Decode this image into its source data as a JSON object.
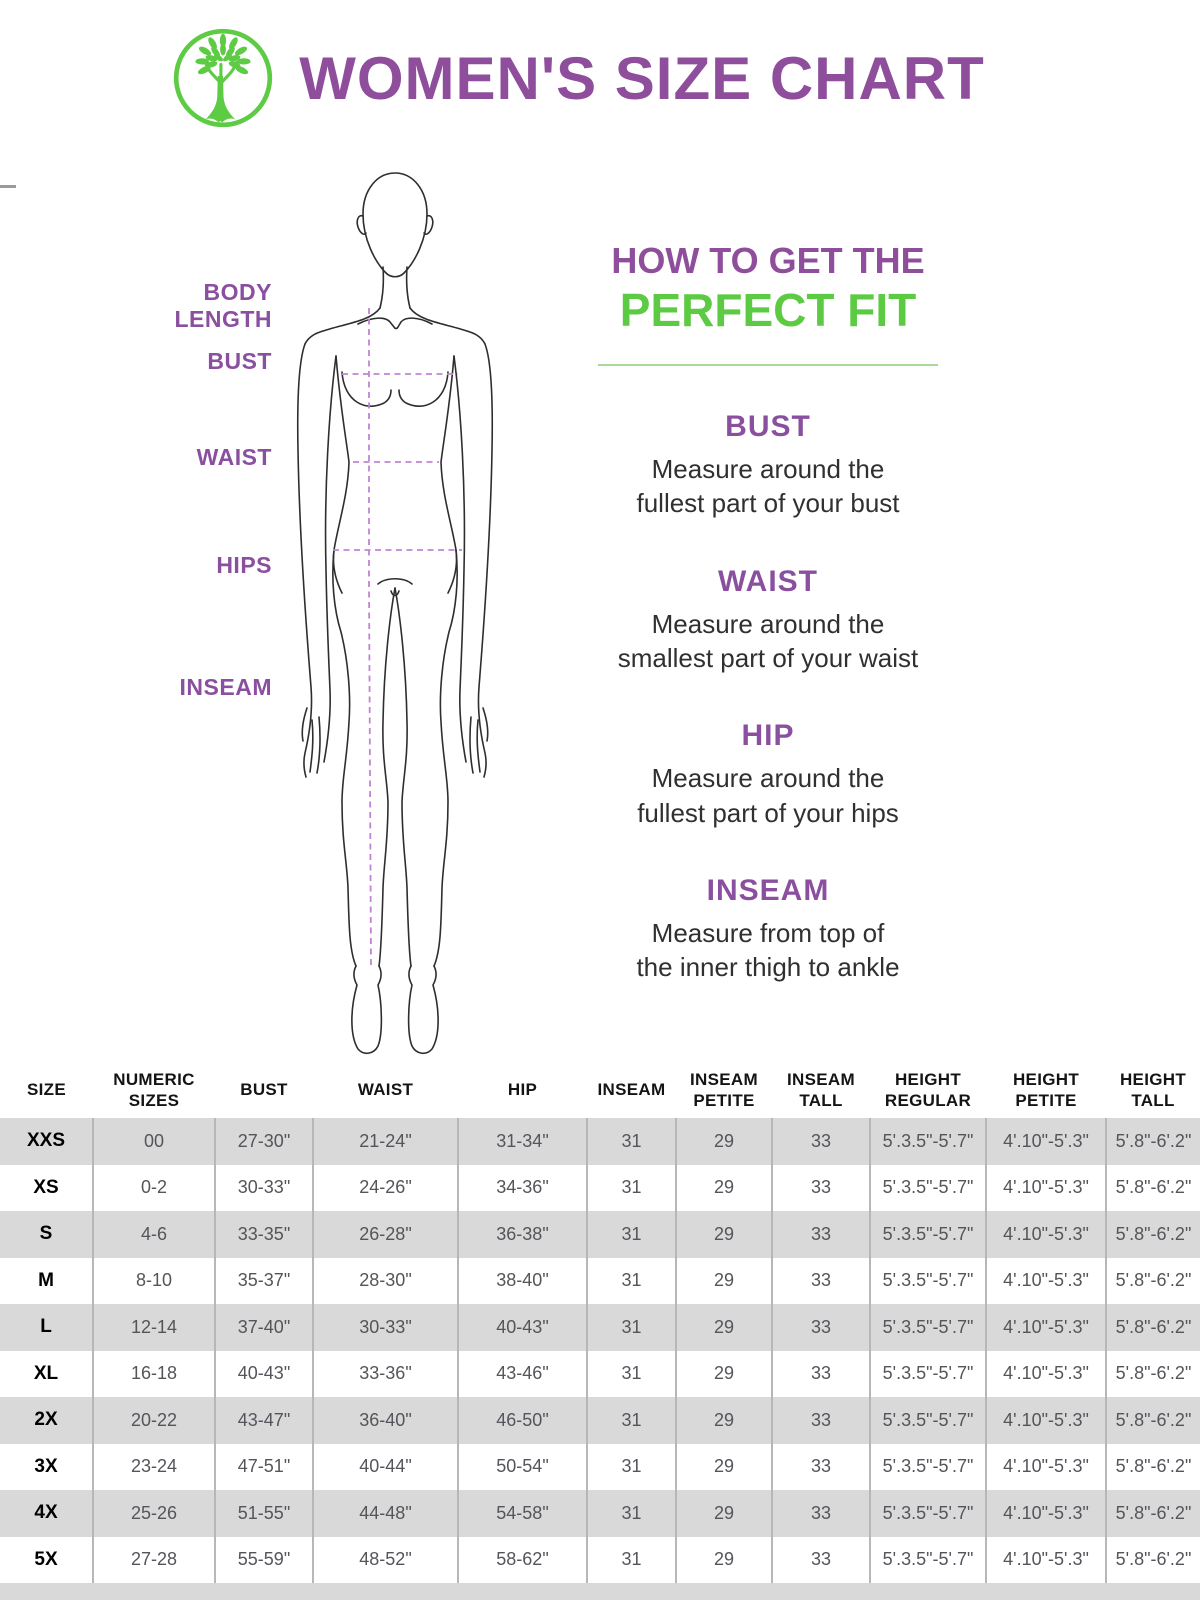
{
  "header": {
    "title": "WOMEN'S SIZE CHART"
  },
  "logo": {
    "label": "tree-logo",
    "color": "#5ecb44"
  },
  "figure": {
    "labels": {
      "body_length": "BODY LENGTH",
      "bust": "BUST",
      "waist": "WAIST",
      "hips": "HIPS",
      "inseam": "INSEAM"
    }
  },
  "guide": {
    "title_line1": "HOW TO GET THE",
    "title_line2": "PERFECT FIT",
    "sections": [
      {
        "heading": "BUST",
        "text": "Measure around the\nfullest part of your bust"
      },
      {
        "heading": "WAIST",
        "text": "Measure around the\nsmallest part of your waist"
      },
      {
        "heading": "HIP",
        "text": "Measure around the\nfullest part of your hips"
      },
      {
        "heading": "INSEAM",
        "text": "Measure from top of\nthe inner thigh to ankle"
      }
    ]
  },
  "colors": {
    "purple": "#8e4e9c",
    "green": "#5ccb43",
    "row_gray": "#d9d9d9"
  },
  "table": {
    "columns": [
      "SIZE",
      "NUMERIC SIZES",
      "BUST",
      "WAIST",
      "HIP",
      "INSEAM",
      "INSEAM PETITE",
      "INSEAM TALL",
      "HEIGHT REGULAR",
      "HEIGHT PETITE",
      "HEIGHT TALL"
    ],
    "rows": [
      [
        "XXS",
        "00",
        "27-30\"",
        "21-24\"",
        "31-34\"",
        "31",
        "29",
        "33",
        "5'.3.5\"-5'.7\"",
        "4'.10\"-5'.3\"",
        "5'.8\"-6'.2\""
      ],
      [
        "XS",
        "0-2",
        "30-33\"",
        "24-26\"",
        "34-36\"",
        "31",
        "29",
        "33",
        "5'.3.5\"-5'.7\"",
        "4'.10\"-5'.3\"",
        "5'.8\"-6'.2\""
      ],
      [
        "S",
        "4-6",
        "33-35\"",
        "26-28\"",
        "36-38\"",
        "31",
        "29",
        "33",
        "5'.3.5\"-5'.7\"",
        "4'.10\"-5'.3\"",
        "5'.8\"-6'.2\""
      ],
      [
        "M",
        "8-10",
        "35-37\"",
        "28-30\"",
        "38-40\"",
        "31",
        "29",
        "33",
        "5'.3.5\"-5'.7\"",
        "4'.10\"-5'.3\"",
        "5'.8\"-6'.2\""
      ],
      [
        "L",
        "12-14",
        "37-40\"",
        "30-33\"",
        "40-43\"",
        "31",
        "29",
        "33",
        "5'.3.5\"-5'.7\"",
        "4'.10\"-5'.3\"",
        "5'.8\"-6'.2\""
      ],
      [
        "XL",
        "16-18",
        "40-43\"",
        "33-36\"",
        "43-46\"",
        "31",
        "29",
        "33",
        "5'.3.5\"-5'.7\"",
        "4'.10\"-5'.3\"",
        "5'.8\"-6'.2\""
      ],
      [
        "2X",
        "20-22",
        "43-47\"",
        "36-40\"",
        "46-50\"",
        "31",
        "29",
        "33",
        "5'.3.5\"-5'.7\"",
        "4'.10\"-5'.3\"",
        "5'.8\"-6'.2\""
      ],
      [
        "3X",
        "23-24",
        "47-51\"",
        "40-44\"",
        "50-54\"",
        "31",
        "29",
        "33",
        "5'.3.5\"-5'.7\"",
        "4'.10\"-5'.3\"",
        "5'.8\"-6'.2\""
      ],
      [
        "4X",
        "25-26",
        "51-55\"",
        "44-48\"",
        "54-58\"",
        "31",
        "29",
        "33",
        "5'.3.5\"-5'.7\"",
        "4'.10\"-5'.3\"",
        "5'.8\"-6'.2\""
      ],
      [
        "5X",
        "27-28",
        "55-59\"",
        "48-52\"",
        "58-62\"",
        "31",
        "29",
        "33",
        "5'.3.5\"-5'.7\"",
        "4'.10\"-5'.3\"",
        "5'.8\"-6'.2\""
      ]
    ]
  }
}
